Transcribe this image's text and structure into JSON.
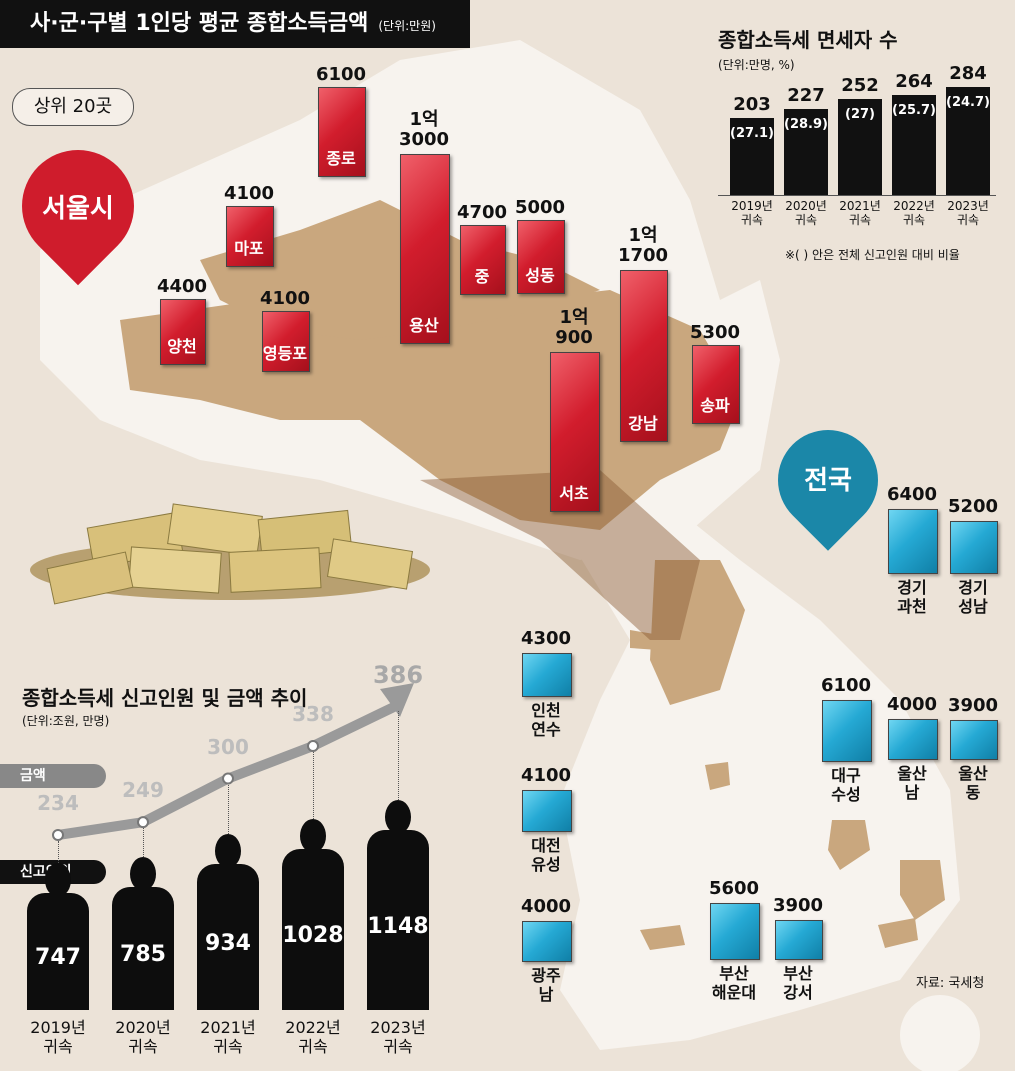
{
  "title": "사·군·구별 1인당 평균 종합소득금액",
  "title_unit": "(단위:만원)",
  "subtitle": "상위 20곳",
  "seoul_label": "서울시",
  "national_label": "전국",
  "source": "자료: 국세청",
  "colors": {
    "seoul": "#d21d2d",
    "national": "#25a9d4",
    "dark": "#111111",
    "map": "#c9a77e"
  },
  "seoul_districts": [
    {
      "name": "양천",
      "value_text": "4400",
      "value": 4400
    },
    {
      "name": "마포",
      "value_text": "4100",
      "value": 4100
    },
    {
      "name": "영등포",
      "value_text": "4100",
      "value": 4100
    },
    {
      "name": "종로",
      "value_text": "6100",
      "value": 6100
    },
    {
      "name": "용산",
      "value_text": "1억\n3000",
      "value": 13000
    },
    {
      "name": "중",
      "value_text": "4700",
      "value": 4700
    },
    {
      "name": "성동",
      "value_text": "5000",
      "value": 5000
    },
    {
      "name": "서초",
      "value_text": "1억\n900",
      "value": 10900
    },
    {
      "name": "강남",
      "value_text": "1억\n1700",
      "value": 11700
    },
    {
      "name": "송파",
      "value_text": "5300",
      "value": 5300
    }
  ],
  "national_regions": [
    {
      "name": "경기\n과천",
      "value_text": "6400",
      "value": 6400
    },
    {
      "name": "경기\n성남",
      "value_text": "5200",
      "value": 5200
    },
    {
      "name": "인천\n연수",
      "value_text": "4300",
      "value": 4300
    },
    {
      "name": "대구\n수성",
      "value_text": "6100",
      "value": 6100
    },
    {
      "name": "울산\n남",
      "value_text": "4000",
      "value": 4000
    },
    {
      "name": "울산\n동",
      "value_text": "3900",
      "value": 3900
    },
    {
      "name": "대전\n유성",
      "value_text": "4100",
      "value": 4100
    },
    {
      "name": "광주\n남",
      "value_text": "4000",
      "value": 4000
    },
    {
      "name": "부산\n해운대",
      "value_text": "5600",
      "value": 5600
    },
    {
      "name": "부산\n강서",
      "value_text": "3900",
      "value": 3900
    }
  ],
  "exempt": {
    "title": "종합소득세 면세자 수",
    "unit": "(단위:만명, %)",
    "note": "※( ) 안은 전체 신고인원 대비 비율",
    "years": [
      "2019년\n귀속",
      "2020년\n귀속",
      "2021년\n귀속",
      "2022년\n귀속",
      "2023년\n귀속"
    ],
    "values": [
      203,
      227,
      252,
      264,
      284
    ],
    "percent_labels": [
      "(27.1)",
      "(28.9)",
      "(27)",
      "(25.7)",
      "(24.7)"
    ],
    "percents": [
      27.1,
      28.9,
      27,
      25.7,
      24.7
    ]
  },
  "trend": {
    "title": "종합소득세 신고인원 및 금액 추이",
    "unit": "(단위:조원, 만명)",
    "amount_tag": "금액",
    "people_tag": "신고인원",
    "years": [
      "2019년\n귀속",
      "2020년\n귀속",
      "2021년\n귀속",
      "2022년\n귀속",
      "2023년\n귀속"
    ],
    "amounts": [
      234,
      249,
      300,
      338,
      386
    ],
    "people": [
      747,
      785,
      934,
      1028,
      1148
    ]
  },
  "chart_data": [
    {
      "type": "bar",
      "title": "사·군·구별 1인당 평균 종합소득금액",
      "unit": "만원",
      "categories": [
        "양천",
        "마포",
        "영등포",
        "종로",
        "용산",
        "중",
        "성동",
        "서초",
        "강남",
        "송파",
        "경기 과천",
        "경기 성남",
        "인천 연수",
        "대구 수성",
        "울산 남",
        "울산 동",
        "대전 유성",
        "광주 남",
        "부산 해운대",
        "부산 강서"
      ],
      "values": [
        4400,
        4100,
        4100,
        6100,
        13000,
        4700,
        5000,
        10900,
        11700,
        5300,
        6400,
        5200,
        4300,
        6100,
        4000,
        3900,
        4100,
        4000,
        5600,
        3900
      ]
    },
    {
      "type": "bar",
      "title": "종합소득세 면세자 수",
      "unit": "만명, %",
      "categories": [
        "2019년 귀속",
        "2020년 귀속",
        "2021년 귀속",
        "2022년 귀속",
        "2023년 귀속"
      ],
      "series": [
        {
          "name": "면세자 수",
          "values": [
            203,
            227,
            252,
            264,
            284
          ]
        },
        {
          "name": "비율",
          "values": [
            27.1,
            28.9,
            27,
            25.7,
            24.7
          ]
        }
      ]
    },
    {
      "type": "line",
      "title": "종합소득세 신고인원 및 금액 추이",
      "unit": "조원, 만명",
      "categories": [
        "2019년 귀속",
        "2020년 귀속",
        "2021년 귀속",
        "2022년 귀속",
        "2023년 귀속"
      ],
      "series": [
        {
          "name": "금액",
          "values": [
            234,
            249,
            300,
            338,
            386
          ]
        },
        {
          "name": "신고인원",
          "values": [
            747,
            785,
            934,
            1028,
            1148
          ]
        }
      ]
    }
  ]
}
